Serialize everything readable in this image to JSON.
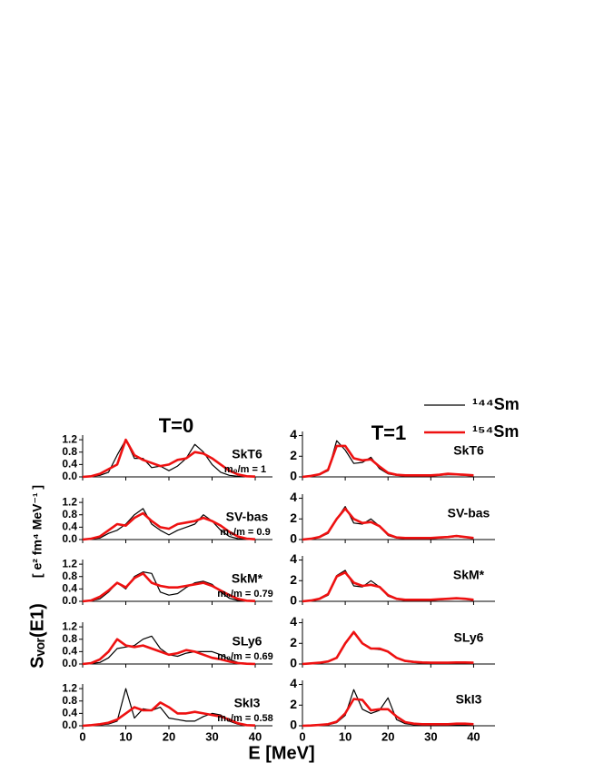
{
  "figure": {
    "column_titles": [
      "T=0",
      "T=1"
    ],
    "ylabel": "Sᵥₒᵣ(E1)",
    "yunit": "[ e² fm⁴ MeV⁻¹ ]",
    "xlabel": "E  [MeV]"
  },
  "chart_data": [
    {
      "type": "line",
      "label": "SkT6",
      "sublabel": "m₀/m = 1",
      "x": [
        0,
        2,
        4,
        6,
        8,
        10,
        12,
        14,
        16,
        18,
        20,
        22,
        24,
        26,
        28,
        30,
        32,
        34,
        36,
        38,
        40
      ],
      "xlim": [
        0,
        44
      ],
      "xticks": [
        0,
        10,
        20,
        30,
        40
      ],
      "ylim": [
        0,
        1.35
      ],
      "yticks": [
        {
          "value": 0,
          "label": "0.0"
        },
        {
          "value": 0.4,
          "label": "0.4"
        },
        {
          "value": 0.8,
          "label": "0.8"
        },
        {
          "value": 1.2,
          "label": "1.2"
        }
      ],
      "series": [
        {
          "name": "¹⁴⁴Sm",
          "color": "#000000",
          "values": [
            0,
            0.02,
            0.05,
            0.15,
            0.7,
            1.2,
            0.6,
            0.6,
            0.3,
            0.35,
            0.2,
            0.35,
            0.6,
            1.05,
            0.8,
            0.4,
            0.15,
            0.05,
            0.02,
            0.01,
            0
          ]
        },
        {
          "name": "¹⁵⁴Sm",
          "color": "#ee1111",
          "values": [
            0,
            0.02,
            0.1,
            0.25,
            0.4,
            1.2,
            0.7,
            0.55,
            0.45,
            0.35,
            0.4,
            0.55,
            0.6,
            0.8,
            0.75,
            0.6,
            0.4,
            0.2,
            0.08,
            0.02,
            0.01
          ]
        }
      ]
    },
    {
      "type": "line",
      "label": "SV-bas",
      "sublabel": "m₀/m = 0.9",
      "x": [
        0,
        2,
        4,
        6,
        8,
        10,
        12,
        14,
        16,
        18,
        20,
        22,
        24,
        26,
        28,
        30,
        32,
        34,
        36,
        38,
        40
      ],
      "xlim": [
        0,
        44
      ],
      "xticks": [
        0,
        10,
        20,
        30,
        40
      ],
      "ylim": [
        0,
        1.35
      ],
      "yticks": [
        {
          "value": 0,
          "label": "0.0"
        },
        {
          "value": 0.4,
          "label": "0.4"
        },
        {
          "value": 0.8,
          "label": "0.8"
        },
        {
          "value": 1.2,
          "label": "1.2"
        }
      ],
      "series": [
        {
          "color": "#000000",
          "values": [
            0,
            0.02,
            0.05,
            0.2,
            0.3,
            0.5,
            0.8,
            1.0,
            0.5,
            0.3,
            0.15,
            0.3,
            0.4,
            0.5,
            0.8,
            0.6,
            0.3,
            0.1,
            0.03,
            0.01,
            0
          ]
        },
        {
          "color": "#ee1111",
          "values": [
            0,
            0.03,
            0.1,
            0.3,
            0.5,
            0.45,
            0.7,
            0.85,
            0.6,
            0.4,
            0.35,
            0.5,
            0.55,
            0.6,
            0.7,
            0.6,
            0.45,
            0.25,
            0.1,
            0.03,
            0.01
          ]
        }
      ]
    },
    {
      "type": "line",
      "label": "SkM*",
      "sublabel": "m₀/m = 0.79",
      "x": [
        0,
        2,
        4,
        6,
        8,
        10,
        12,
        14,
        16,
        18,
        20,
        22,
        24,
        26,
        28,
        30,
        32,
        34,
        36,
        38,
        40
      ],
      "xlim": [
        0,
        44
      ],
      "xticks": [
        0,
        10,
        20,
        30,
        40
      ],
      "ylim": [
        0,
        1.35
      ],
      "yticks": [
        {
          "value": 0,
          "label": "0.0"
        },
        {
          "value": 0.4,
          "label": "0.4"
        },
        {
          "value": 0.8,
          "label": "0.8"
        },
        {
          "value": 1.2,
          "label": "1.2"
        }
      ],
      "series": [
        {
          "color": "#000000",
          "values": [
            0,
            0.02,
            0.08,
            0.3,
            0.6,
            0.4,
            0.8,
            0.95,
            0.9,
            0.3,
            0.2,
            0.25,
            0.45,
            0.6,
            0.65,
            0.55,
            0.3,
            0.1,
            0.03,
            0.01,
            0
          ]
        },
        {
          "color": "#ee1111",
          "values": [
            0,
            0.03,
            0.15,
            0.35,
            0.6,
            0.45,
            0.75,
            0.9,
            0.6,
            0.5,
            0.45,
            0.45,
            0.5,
            0.55,
            0.6,
            0.5,
            0.35,
            0.2,
            0.08,
            0.02,
            0.01
          ]
        }
      ]
    },
    {
      "type": "line",
      "label": "SLy6",
      "sublabel": "m₀/m = 0.69",
      "x": [
        0,
        2,
        4,
        6,
        8,
        10,
        12,
        14,
        16,
        18,
        20,
        22,
        24,
        26,
        28,
        30,
        32,
        34,
        36,
        38,
        40
      ],
      "xlim": [
        0,
        44
      ],
      "xticks": [
        0,
        10,
        20,
        30,
        40
      ],
      "ylim": [
        0,
        1.35
      ],
      "yticks": [
        {
          "value": 0,
          "label": "0.0"
        },
        {
          "value": 0.4,
          "label": "0.4"
        },
        {
          "value": 0.8,
          "label": "0.8"
        },
        {
          "value": 1.2,
          "label": "1.2"
        }
      ],
      "series": [
        {
          "color": "#000000",
          "values": [
            0,
            0.02,
            0.05,
            0.2,
            0.5,
            0.55,
            0.6,
            0.8,
            0.9,
            0.5,
            0.3,
            0.25,
            0.35,
            0.4,
            0.4,
            0.4,
            0.3,
            0.15,
            0.05,
            0.02,
            0
          ]
        },
        {
          "color": "#ee1111",
          "values": [
            0,
            0.03,
            0.15,
            0.4,
            0.8,
            0.6,
            0.55,
            0.6,
            0.5,
            0.4,
            0.3,
            0.35,
            0.45,
            0.4,
            0.3,
            0.2,
            0.15,
            0.08,
            0.03,
            0.01,
            0
          ]
        }
      ]
    },
    {
      "type": "line",
      "label": "SkI3",
      "sublabel": "m₀/m = 0.58",
      "x": [
        0,
        2,
        4,
        6,
        8,
        10,
        12,
        14,
        16,
        18,
        20,
        22,
        24,
        26,
        28,
        30,
        32,
        34,
        36,
        38,
        40
      ],
      "xlim": [
        0,
        44
      ],
      "xticks": [
        0,
        10,
        20,
        30,
        40
      ],
      "ylim": [
        0,
        1.35
      ],
      "yticks": [
        {
          "value": 0,
          "label": "0.0"
        },
        {
          "value": 0.4,
          "label": "0.4"
        },
        {
          "value": 0.8,
          "label": "0.8"
        },
        {
          "value": 1.2,
          "label": "1.2"
        }
      ],
      "series": [
        {
          "color": "#000000",
          "values": [
            0,
            0.01,
            0.03,
            0.06,
            0.15,
            1.2,
            0.25,
            0.55,
            0.5,
            0.6,
            0.25,
            0.2,
            0.15,
            0.15,
            0.3,
            0.4,
            0.35,
            0.15,
            0.05,
            0.01,
            0
          ]
        },
        {
          "color": "#ee1111",
          "values": [
            0,
            0.02,
            0.05,
            0.1,
            0.2,
            0.4,
            0.6,
            0.5,
            0.5,
            0.75,
            0.6,
            0.4,
            0.4,
            0.45,
            0.4,
            0.35,
            0.3,
            0.2,
            0.08,
            0.02,
            0.01
          ]
        }
      ]
    },
    {
      "type": "line",
      "label": "SkT6",
      "x": [
        0,
        2,
        4,
        6,
        8,
        10,
        12,
        14,
        16,
        18,
        20,
        22,
        24,
        26,
        28,
        30,
        32,
        34,
        36,
        38,
        40
      ],
      "xlim": [
        0,
        45
      ],
      "xticks": [
        0,
        10,
        20,
        30,
        40
      ],
      "ylim": [
        0,
        4.4
      ],
      "yticks": [
        0,
        2,
        4
      ],
      "series": [
        {
          "color": "#000000",
          "values": [
            0,
            0.1,
            0.2,
            0.6,
            3.5,
            2.6,
            1.3,
            1.4,
            1.9,
            0.8,
            0.3,
            0.15,
            0.1,
            0.1,
            0.1,
            0.1,
            0.15,
            0.2,
            0.2,
            0.15,
            0.1
          ]
        },
        {
          "color": "#ee1111",
          "values": [
            0,
            0.1,
            0.25,
            0.7,
            3.0,
            3.0,
            1.8,
            1.6,
            1.7,
            1.0,
            0.4,
            0.2,
            0.15,
            0.15,
            0.15,
            0.15,
            0.2,
            0.3,
            0.25,
            0.2,
            0.15
          ]
        }
      ]
    },
    {
      "type": "line",
      "label": "SV-bas",
      "x": [
        0,
        2,
        4,
        6,
        8,
        10,
        12,
        14,
        16,
        18,
        20,
        22,
        24,
        26,
        28,
        30,
        32,
        34,
        36,
        38,
        40
      ],
      "xlim": [
        0,
        45
      ],
      "xticks": [
        0,
        10,
        20,
        30,
        40
      ],
      "ylim": [
        0,
        4.4
      ],
      "yticks": [
        0,
        2,
        4
      ],
      "series": [
        {
          "color": "#000000",
          "values": [
            0,
            0.05,
            0.2,
            0.6,
            2.0,
            3.2,
            1.6,
            1.5,
            2.0,
            1.3,
            0.4,
            0.15,
            0.1,
            0.1,
            0.1,
            0.1,
            0.15,
            0.2,
            0.3,
            0.2,
            0.1
          ]
        },
        {
          "color": "#ee1111",
          "values": [
            0,
            0.08,
            0.25,
            0.7,
            2.0,
            3.0,
            2.0,
            1.6,
            1.7,
            1.3,
            0.5,
            0.2,
            0.15,
            0.15,
            0.15,
            0.15,
            0.2,
            0.25,
            0.35,
            0.25,
            0.15
          ]
        }
      ]
    },
    {
      "type": "line",
      "label": "SkM*",
      "x": [
        0,
        2,
        4,
        6,
        8,
        10,
        12,
        14,
        16,
        18,
        20,
        22,
        24,
        26,
        28,
        30,
        32,
        34,
        36,
        38,
        40
      ],
      "xlim": [
        0,
        45
      ],
      "xticks": [
        0,
        10,
        20,
        30,
        40
      ],
      "ylim": [
        0,
        4.4
      ],
      "yticks": [
        0,
        2,
        4
      ],
      "series": [
        {
          "color": "#000000",
          "values": [
            0,
            0.05,
            0.2,
            0.6,
            2.5,
            3.0,
            1.5,
            1.4,
            2.0,
            1.4,
            0.5,
            0.2,
            0.1,
            0.1,
            0.1,
            0.1,
            0.15,
            0.2,
            0.3,
            0.2,
            0.1
          ]
        },
        {
          "color": "#ee1111",
          "values": [
            0,
            0.08,
            0.25,
            0.7,
            2.4,
            2.8,
            1.8,
            1.5,
            1.6,
            1.4,
            0.6,
            0.25,
            0.15,
            0.15,
            0.15,
            0.15,
            0.2,
            0.25,
            0.3,
            0.25,
            0.15
          ]
        }
      ]
    },
    {
      "type": "line",
      "label": "SLy6",
      "x": [
        0,
        2,
        4,
        6,
        8,
        10,
        12,
        14,
        16,
        18,
        20,
        22,
        24,
        26,
        28,
        30,
        32,
        34,
        36,
        38,
        40
      ],
      "xlim": [
        0,
        45
      ],
      "xticks": [
        0,
        10,
        20,
        30,
        40
      ],
      "ylim": [
        0,
        4.4
      ],
      "yticks": [
        0,
        2,
        4
      ],
      "series": [
        {
          "color": "#000000",
          "values": [
            0,
            0.05,
            0.1,
            0.2,
            0.6,
            2.0,
            3.0,
            2.0,
            1.5,
            1.4,
            1.2,
            0.6,
            0.25,
            0.15,
            0.1,
            0.1,
            0.1,
            0.1,
            0.15,
            0.15,
            0.1
          ]
        },
        {
          "color": "#ee1111",
          "values": [
            0,
            0.06,
            0.12,
            0.25,
            0.6,
            2.0,
            3.1,
            2.0,
            1.5,
            1.5,
            1.2,
            0.6,
            0.3,
            0.2,
            0.15,
            0.12,
            0.12,
            0.12,
            0.15,
            0.15,
            0.12
          ]
        }
      ]
    },
    {
      "type": "line",
      "label": "SkI3",
      "x": [
        0,
        2,
        4,
        6,
        8,
        10,
        12,
        14,
        16,
        18,
        20,
        22,
        24,
        26,
        28,
        30,
        32,
        34,
        36,
        38,
        40
      ],
      "xlim": [
        0,
        45
      ],
      "xticks": [
        0,
        10,
        20,
        30,
        40
      ],
      "ylim": [
        0,
        4.4
      ],
      "yticks": [
        0,
        2,
        4
      ],
      "series": [
        {
          "color": "#000000",
          "values": [
            0,
            0.02,
            0.05,
            0.1,
            0.3,
            1.0,
            3.5,
            1.6,
            1.2,
            1.5,
            2.7,
            0.6,
            0.2,
            0.1,
            0.1,
            0.1,
            0.1,
            0.1,
            0.1,
            0.1,
            0.05
          ]
        },
        {
          "color": "#ee1111",
          "values": [
            0,
            0.03,
            0.08,
            0.15,
            0.4,
            1.2,
            2.6,
            2.5,
            1.5,
            1.6,
            1.6,
            0.9,
            0.35,
            0.2,
            0.15,
            0.15,
            0.15,
            0.15,
            0.2,
            0.2,
            0.15
          ]
        }
      ]
    }
  ]
}
